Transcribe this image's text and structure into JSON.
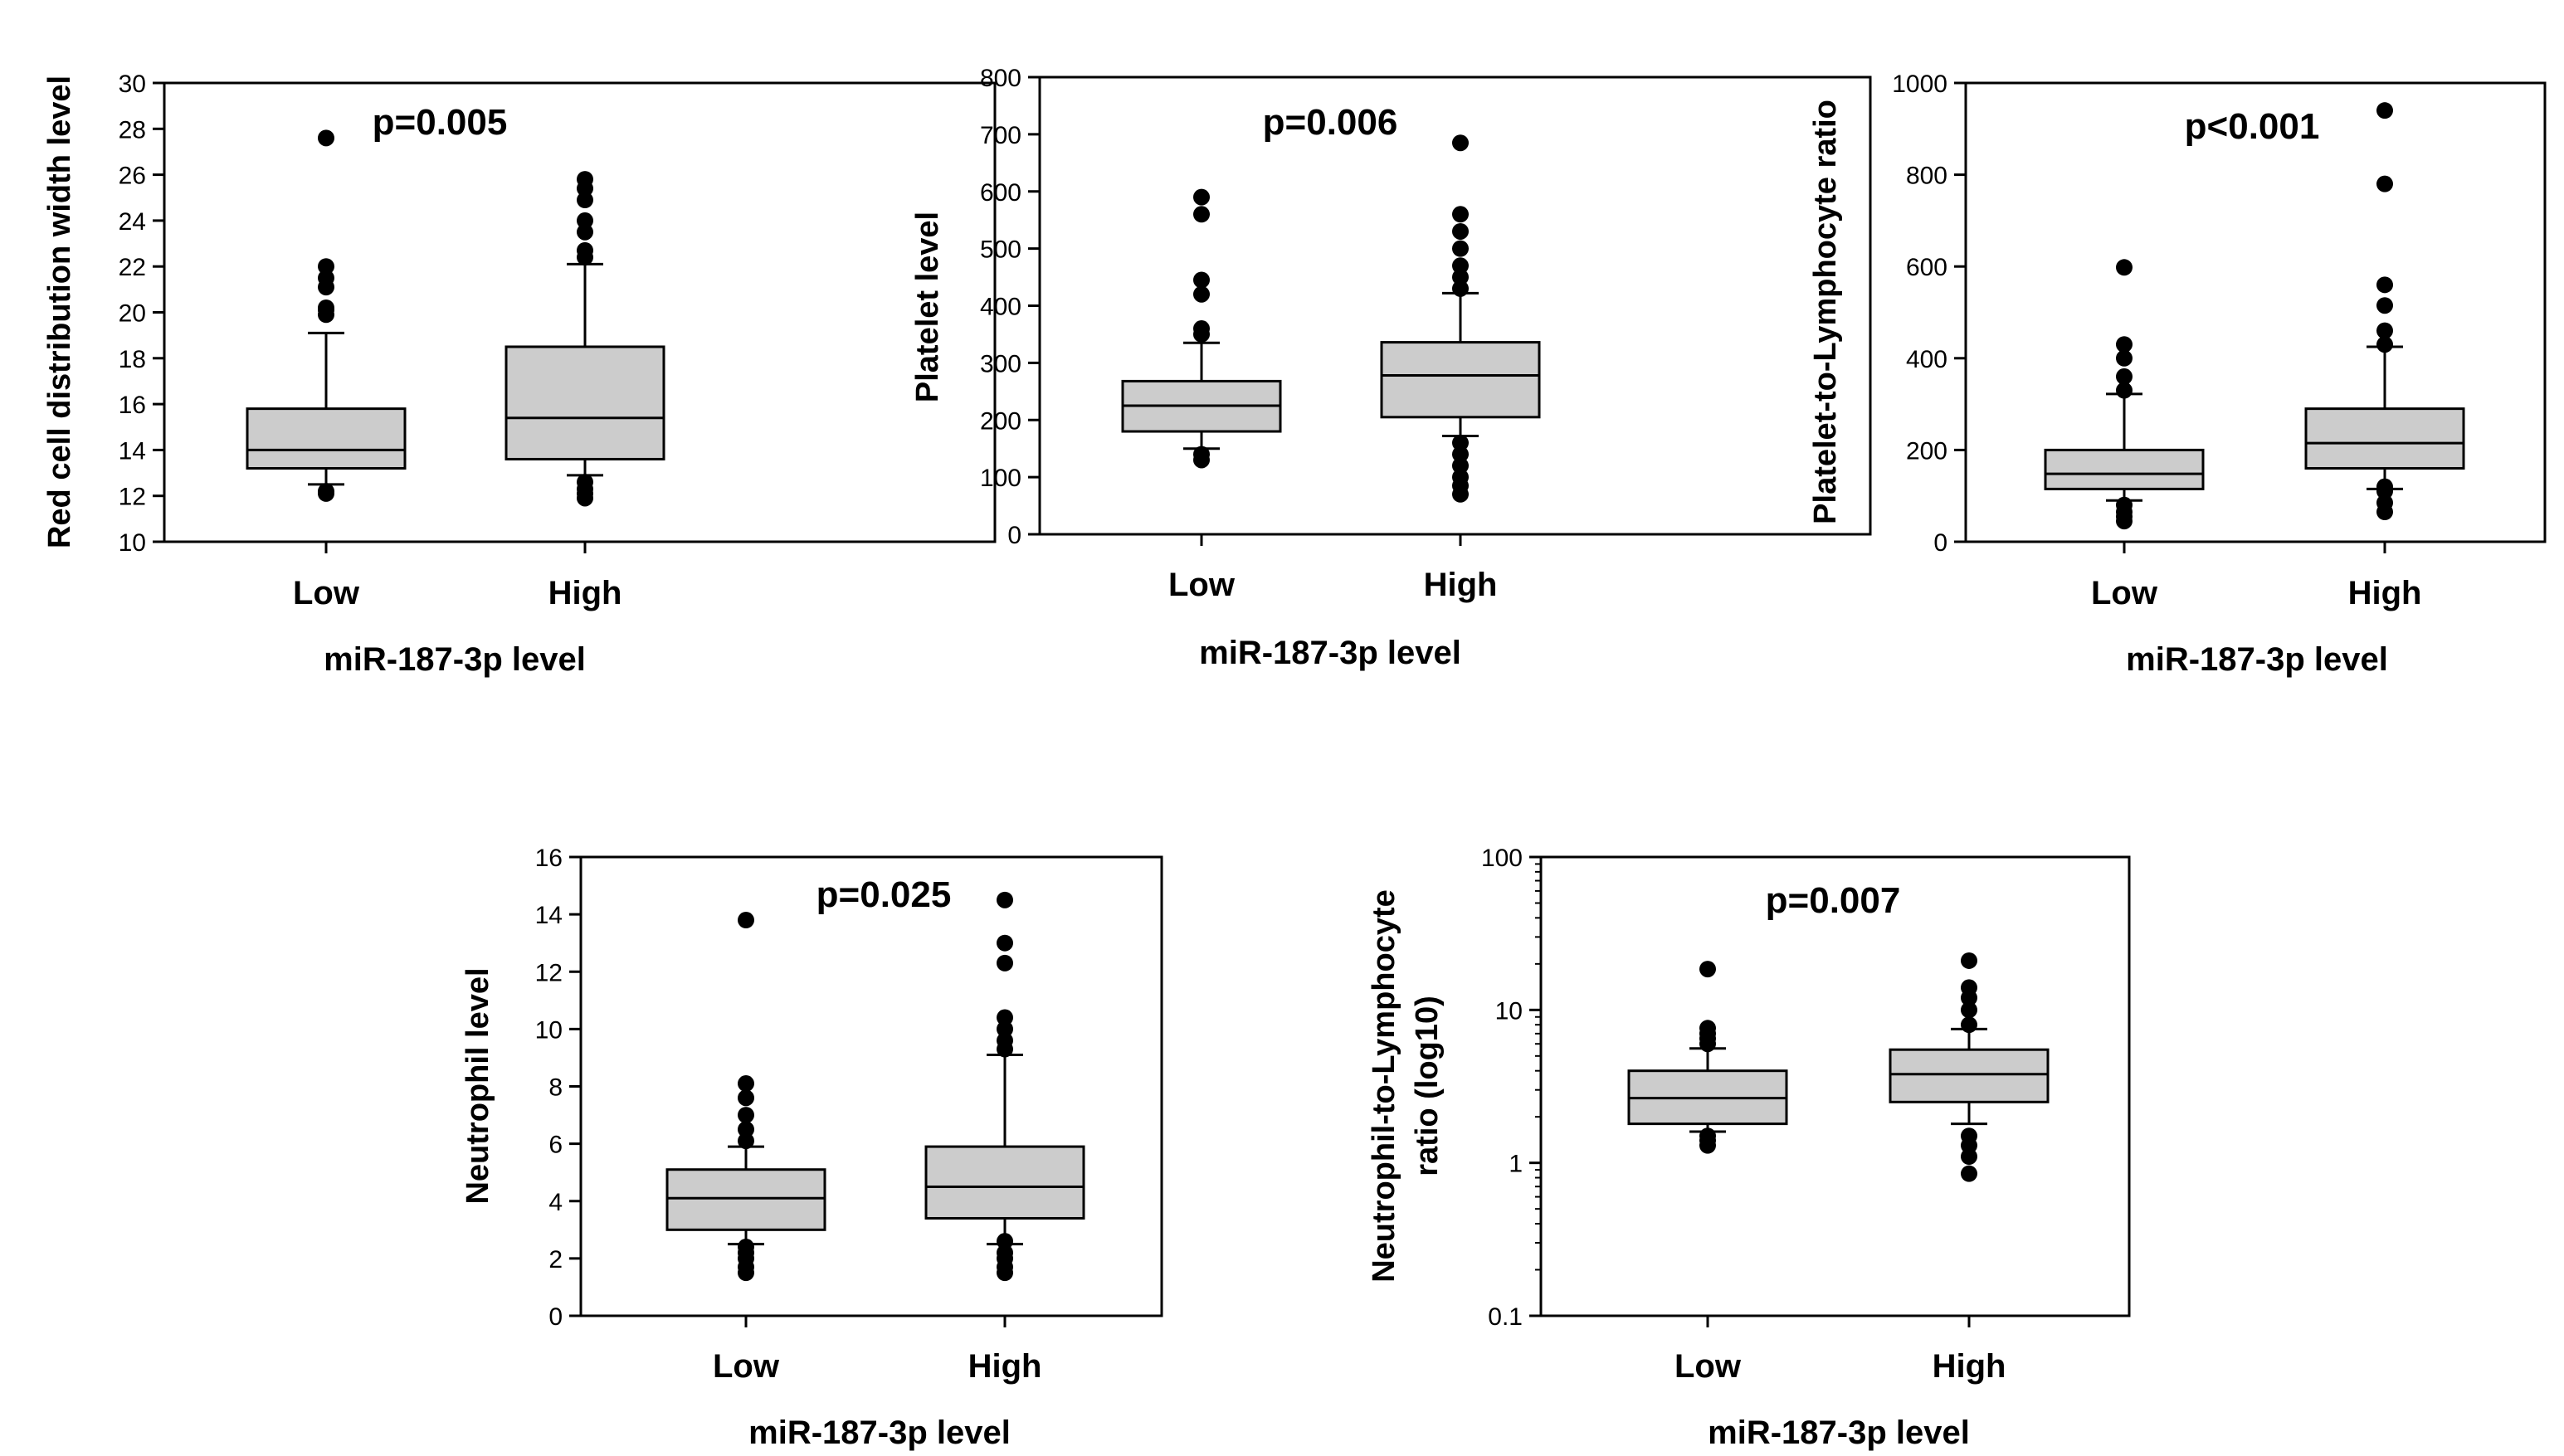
{
  "figure": {
    "background": "#ffffff",
    "box_fill": "#cccccc",
    "ink": "#000000"
  },
  "chart_data": [
    {
      "type": "boxplot",
      "id": "rdw",
      "title": "p=0.005",
      "xlabel": "miR-187-3p level",
      "ylabel": "Red cell distribution width level",
      "categories": [
        "Low",
        "High"
      ],
      "scale": "linear",
      "ylim": [
        10,
        30
      ],
      "yticks": [
        10,
        12,
        14,
        16,
        18,
        20,
        22,
        24,
        26,
        28,
        30
      ],
      "ytick_labels": [
        "10",
        "12",
        "14",
        "16",
        "18",
        "20",
        "22",
        "24",
        "26",
        "28",
        "30"
      ],
      "boxes": [
        {
          "q1": 13.2,
          "median": 14.0,
          "q3": 15.8,
          "whisker_low": 12.5,
          "whisker_high": 19.1,
          "outliers": [
            12.1,
            12.2,
            19.9,
            20.1,
            20.2,
            21.1,
            21.5,
            22.0,
            27.6
          ]
        },
        {
          "q1": 13.6,
          "median": 15.4,
          "q3": 18.5,
          "whisker_low": 12.9,
          "whisker_high": 22.1,
          "outliers": [
            11.9,
            12.1,
            12.3,
            12.6,
            22.4,
            22.7,
            23.5,
            24.0,
            24.9,
            25.4,
            25.8
          ]
        }
      ]
    },
    {
      "type": "boxplot",
      "id": "platelet",
      "title": "p=0.006",
      "xlabel": "miR-187-3p level",
      "ylabel": "Platelet level",
      "categories": [
        "Low",
        "High"
      ],
      "scale": "linear",
      "ylim": [
        0,
        800
      ],
      "yticks": [
        0,
        100,
        200,
        300,
        400,
        500,
        600,
        700,
        800
      ],
      "ytick_labels": [
        "0",
        "100",
        "200",
        "300",
        "400",
        "500",
        "600",
        "700",
        "800"
      ],
      "boxes": [
        {
          "q1": 180,
          "median": 225,
          "q3": 268,
          "whisker_low": 150,
          "whisker_high": 335,
          "outliers": [
            130,
            140,
            350,
            360,
            420,
            445,
            560,
            590
          ]
        },
        {
          "q1": 205,
          "median": 278,
          "q3": 336,
          "whisker_low": 172,
          "whisker_high": 422,
          "outliers": [
            70,
            85,
            100,
            120,
            140,
            160,
            430,
            450,
            470,
            500,
            530,
            560,
            685
          ]
        }
      ]
    },
    {
      "type": "boxplot",
      "id": "plr",
      "title": "p<0.001",
      "xlabel": "miR-187-3p level",
      "ylabel": "Platelet-to-Lymphocyte ratio",
      "categories": [
        "Low",
        "High"
      ],
      "scale": "linear",
      "ylim": [
        0,
        1000
      ],
      "yticks": [
        0,
        200,
        400,
        600,
        800,
        1000
      ],
      "ytick_labels": [
        "0",
        "200",
        "400",
        "600",
        "800",
        "1000"
      ],
      "boxes": [
        {
          "q1": 115,
          "median": 148,
          "q3": 200,
          "whisker_low": 90,
          "whisker_high": 322,
          "outliers": [
            45,
            55,
            65,
            80,
            330,
            360,
            400,
            430,
            598
          ]
        },
        {
          "q1": 160,
          "median": 215,
          "q3": 290,
          "whisker_low": 115,
          "whisker_high": 425,
          "outliers": [
            65,
            85,
            110,
            120,
            430,
            460,
            515,
            560,
            780,
            940
          ]
        }
      ]
    },
    {
      "type": "boxplot",
      "id": "neutrophil",
      "title": "p=0.025",
      "xlabel": "miR-187-3p level",
      "ylabel": "Neutrophil level",
      "categories": [
        "Low",
        "High"
      ],
      "scale": "linear",
      "ylim": [
        0,
        16
      ],
      "yticks": [
        0,
        2,
        4,
        6,
        8,
        10,
        12,
        14,
        16
      ],
      "ytick_labels": [
        "0",
        "2",
        "4",
        "6",
        "8",
        "10",
        "12",
        "14",
        "16"
      ],
      "boxes": [
        {
          "q1": 3.0,
          "median": 4.1,
          "q3": 5.1,
          "whisker_low": 2.5,
          "whisker_high": 5.9,
          "outliers": [
            1.5,
            1.7,
            2.0,
            2.2,
            2.4,
            6.1,
            6.5,
            7.0,
            7.6,
            8.1,
            13.8
          ]
        },
        {
          "q1": 3.4,
          "median": 4.5,
          "q3": 5.9,
          "whisker_low": 2.5,
          "whisker_high": 9.1,
          "outliers": [
            1.5,
            1.7,
            2.0,
            2.2,
            2.6,
            9.3,
            9.6,
            10.0,
            10.4,
            12.3,
            13.0,
            14.5
          ]
        }
      ]
    },
    {
      "type": "boxplot",
      "id": "nlr",
      "title": "p=0.007",
      "xlabel": "miR-187-3p level",
      "ylabel": "Neutrophil-to-Lymphocyte ratio (log10)",
      "ylabel_lines": [
        "Neutrophil-to-Lymphocyte",
        "ratio (log10)"
      ],
      "categories": [
        "Low",
        "High"
      ],
      "scale": "log",
      "ylim": [
        0.1,
        100
      ],
      "yticks": [
        0.1,
        1,
        10,
        100
      ],
      "ytick_labels": [
        "0.1",
        "1",
        "10",
        "100"
      ],
      "boxes": [
        {
          "q1": 1.8,
          "median": 2.65,
          "q3": 4.0,
          "whisker_low": 1.6,
          "whisker_high": 5.6,
          "outliers": [
            1.3,
            1.4,
            1.5,
            6.0,
            6.5,
            7.0,
            7.6,
            18.5
          ]
        },
        {
          "q1": 2.5,
          "median": 3.8,
          "q3": 5.5,
          "whisker_low": 1.8,
          "whisker_high": 7.5,
          "outliers": [
            0.85,
            1.1,
            1.3,
            1.5,
            8.0,
            10.0,
            12.0,
            14.0,
            21.0
          ]
        }
      ]
    }
  ]
}
